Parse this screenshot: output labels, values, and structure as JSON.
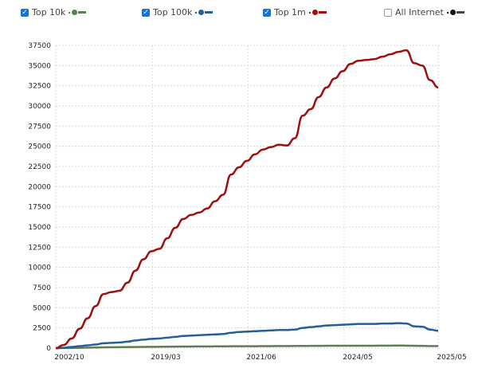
{
  "legend": [
    {
      "label": "Top 10k",
      "checked": true,
      "color": "#5b7f52"
    },
    {
      "label": "Top 100k",
      "checked": true,
      "color": "#255f99"
    },
    {
      "label": "Top 1m",
      "checked": true,
      "color": "#a00f0f"
    },
    {
      "label": "All Internet",
      "checked": false,
      "color": "#111111"
    }
  ],
  "chart_data": {
    "type": "line",
    "title": "",
    "xlabel": "",
    "ylabel": "",
    "ylim": [
      0,
      37500
    ],
    "yticks": [
      0,
      2500,
      5000,
      7500,
      10000,
      12500,
      15000,
      17500,
      20000,
      22500,
      25000,
      27500,
      30000,
      32500,
      35000,
      37500
    ],
    "xlim": [
      0,
      48
    ],
    "xticks": [
      {
        "label": "2002/10",
        "pos": 1.7
      },
      {
        "label": "2019/03",
        "pos": 13.8
      },
      {
        "label": "2021/06",
        "pos": 25.8
      },
      {
        "label": "2024/05",
        "pos": 37.9
      },
      {
        "label": "2025/05",
        "pos": 49.7
      }
    ],
    "grid": true,
    "legend_placement": "top",
    "series": [
      {
        "name": "Top 10k",
        "color": "#5b7f52",
        "values": [
          0,
          10,
          20,
          40,
          60,
          80,
          100,
          110,
          120,
          130,
          140,
          150,
          160,
          170,
          180,
          190,
          200,
          200,
          210,
          210,
          220,
          220,
          230,
          230,
          240,
          240,
          250,
          250,
          260,
          260,
          270,
          270,
          280,
          280,
          290,
          290,
          300,
          300,
          300,
          300,
          300,
          310,
          310,
          320,
          310,
          290,
          280,
          260,
          250
        ]
      },
      {
        "name": "Top 100k",
        "color": "#255f99",
        "values": [
          0,
          50,
          150,
          250,
          350,
          450,
          600,
          650,
          700,
          800,
          950,
          1050,
          1150,
          1200,
          1300,
          1400,
          1500,
          1550,
          1600,
          1650,
          1700,
          1750,
          1900,
          2000,
          2050,
          2100,
          2150,
          2200,
          2250,
          2250,
          2300,
          2500,
          2600,
          2700,
          2800,
          2850,
          2900,
          2950,
          3000,
          3000,
          3000,
          3050,
          3050,
          3100,
          3050,
          2700,
          2650,
          2300,
          2150
        ]
      },
      {
        "name": "Top 1m",
        "color": "#a00f0f",
        "values": [
          0,
          400,
          1200,
          2400,
          3700,
          5200,
          6700,
          6950,
          7100,
          8100,
          9600,
          11000,
          12000,
          12300,
          13600,
          14900,
          16000,
          16500,
          16800,
          17300,
          18200,
          19000,
          21500,
          22400,
          23200,
          24000,
          24600,
          24900,
          25200,
          25100,
          26000,
          28800,
          29600,
          31100,
          32300,
          33400,
          34300,
          35200,
          35600,
          35700,
          35800,
          36100,
          36400,
          36700,
          36900,
          35300,
          35000,
          33200,
          32300
        ]
      }
    ]
  }
}
